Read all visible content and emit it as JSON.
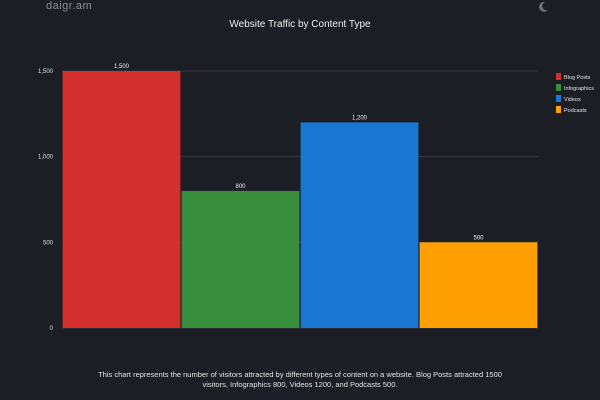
{
  "header": {
    "brand": "daigr.am",
    "theme_icon": "moon-icon"
  },
  "chart_data": {
    "type": "bar",
    "title": "Website Traffic by Content Type",
    "categories": [
      "Blog Posts",
      "Infographics",
      "Videos",
      "Podcasts"
    ],
    "values": [
      1500,
      800,
      1200,
      500
    ],
    "value_labels": [
      "1,500",
      "800",
      "1,200",
      "500"
    ],
    "colors": [
      "#d32f2f",
      "#388e3c",
      "#1976d2",
      "#ffa000"
    ],
    "ylim": [
      0,
      1500
    ],
    "yticks": [
      0,
      500,
      1000,
      1500
    ],
    "ytick_labels": [
      "0",
      "500",
      "1,000",
      "1,500"
    ],
    "xlabel": "",
    "ylabel": "",
    "grid": true,
    "legend_position": "top-right"
  },
  "caption": "This chart represents the number of visitors attracted by different types of content on a website. Blog Posts attracted 1500 visitors, Infographics 800, Videos 1200, and Podcasts 500."
}
